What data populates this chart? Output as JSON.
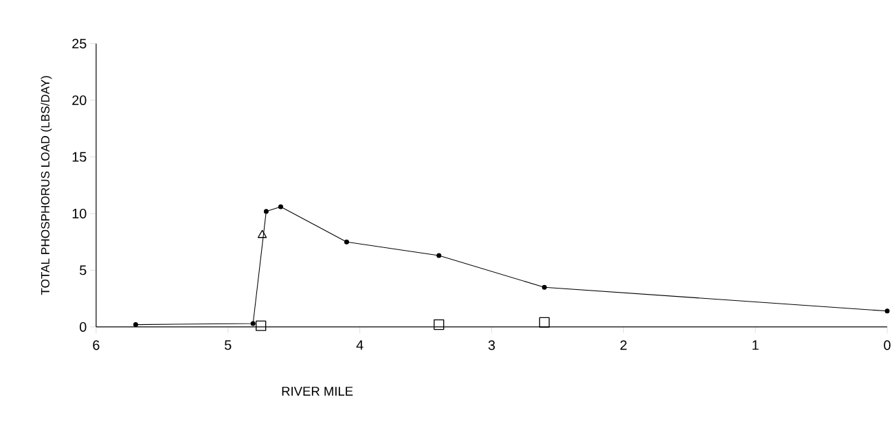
{
  "chart_data": {
    "type": "line",
    "xlabel": "RIVER MILE",
    "ylabel": "TOTAL PHOSPHORUS LOAD (LBS/DAY)",
    "xlim": [
      6,
      0
    ],
    "ylim": [
      0,
      25
    ],
    "xticks": [
      6,
      5,
      4,
      3,
      2,
      1,
      0
    ],
    "yticks": [
      0,
      5,
      10,
      15,
      20,
      25
    ],
    "grid": false,
    "series": [
      {
        "color": "#000000",
        "marker": "circle",
        "x": [
          5.7,
          4.81,
          4.71,
          4.6,
          4.1,
          3.4,
          2.6,
          0
        ],
        "values": [
          0.2,
          0.3,
          10.2,
          10.6,
          7.5,
          6.3,
          3.5,
          1.4
        ]
      },
      {
        "type": "scatter",
        "color": "#000000",
        "marker": "triangle",
        "x": [
          4.74
        ],
        "values": [
          8.1
        ]
      },
      {
        "type": "scatter",
        "color": "#000000",
        "marker": "square",
        "x": [
          4.75,
          3.4,
          2.6
        ],
        "values": [
          0.1,
          0.2,
          0.4
        ]
      }
    ]
  }
}
